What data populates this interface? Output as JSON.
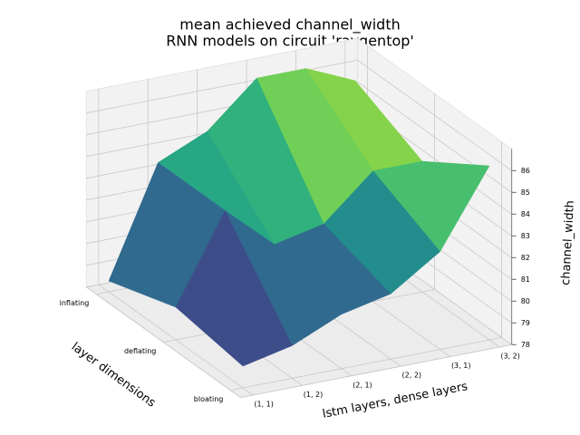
{
  "chart_data": {
    "type": "surface3d",
    "title": "mean achieved channel_width",
    "subtitle": "RNN models on circuit 'raygentop'",
    "x_label": "layer dimensions",
    "y_label": "lstm layers, dense layers",
    "z_label": "channel_width",
    "x_categories": [
      "inflating",
      "deflating",
      "bloating"
    ],
    "y_categories": [
      "(1, 1)",
      "(1, 2)",
      "(2, 1)",
      "(2, 2)",
      "(3, 1)",
      "(3, 2)"
    ],
    "z": [
      [
        78.5,
        83.5,
        84.5,
        86.5,
        86.5,
        85.5
      ],
      [
        79.5,
        83.5,
        81.5,
        82,
        84,
        84
      ],
      [
        79,
        79.5,
        80.5,
        81,
        82.5,
        86
      ]
    ],
    "zlim": [
      78,
      87
    ],
    "zticks": [
      78,
      79,
      80,
      81,
      82,
      83,
      84,
      85,
      86
    ],
    "colormap": "viridis",
    "grid": true
  }
}
